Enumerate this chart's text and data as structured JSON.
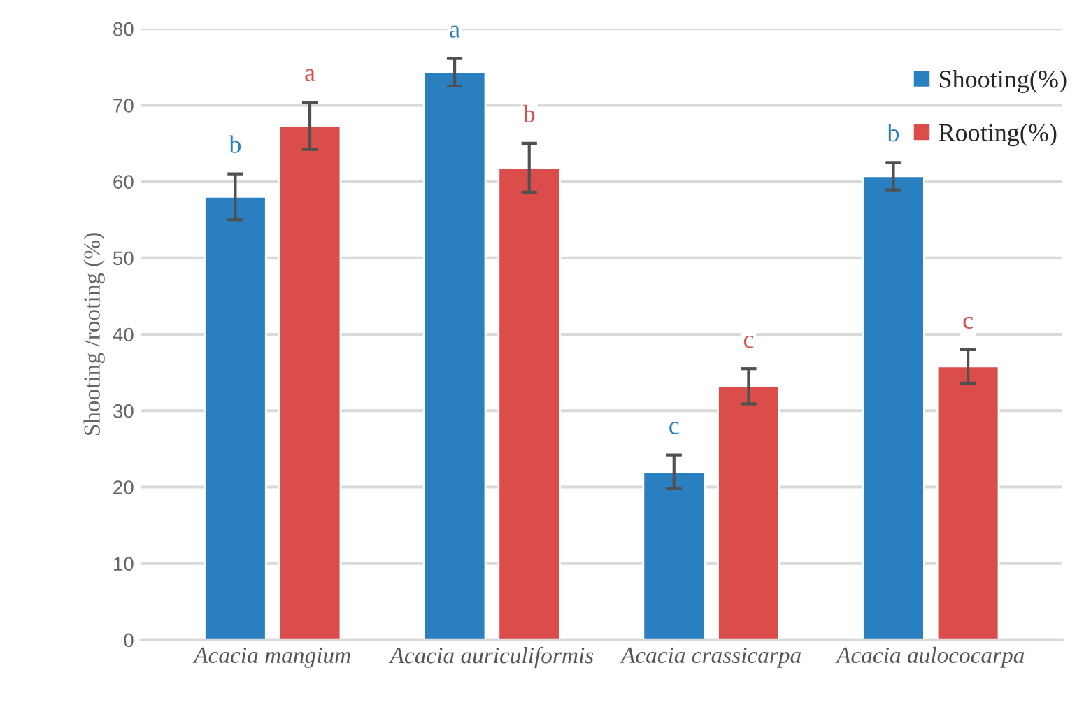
{
  "chart_data": {
    "type": "bar",
    "ylabel": "Shooting /rooting (%)",
    "categories": [
      "Acacia mangium",
      "Acacia auriculiformis",
      "Acacia crassicarpa",
      "Acacia aulococarpa"
    ],
    "series": [
      {
        "name": "Shooting(%)",
        "color": "#2a7fc1",
        "values": [
          58,
          74.3,
          22,
          60.7
        ],
        "errors": [
          3,
          1.8,
          2.2,
          1.8
        ]
      },
      {
        "name": "Rooting(%)",
        "color": "#db4d4a",
        "values": [
          67.3,
          61.8,
          33.2,
          35.8
        ],
        "errors": [
          3.1,
          3.2,
          2.3,
          2.2
        ]
      }
    ],
    "ylim": [
      0,
      80
    ],
    "yticks": [
      0,
      10,
      20,
      30,
      40,
      50,
      60,
      70,
      80
    ],
    "grid": "y",
    "legend": "top right",
    "annotations": [
      "b",
      "a",
      "a",
      "b",
      "c",
      "c",
      "b",
      "c"
    ]
  }
}
